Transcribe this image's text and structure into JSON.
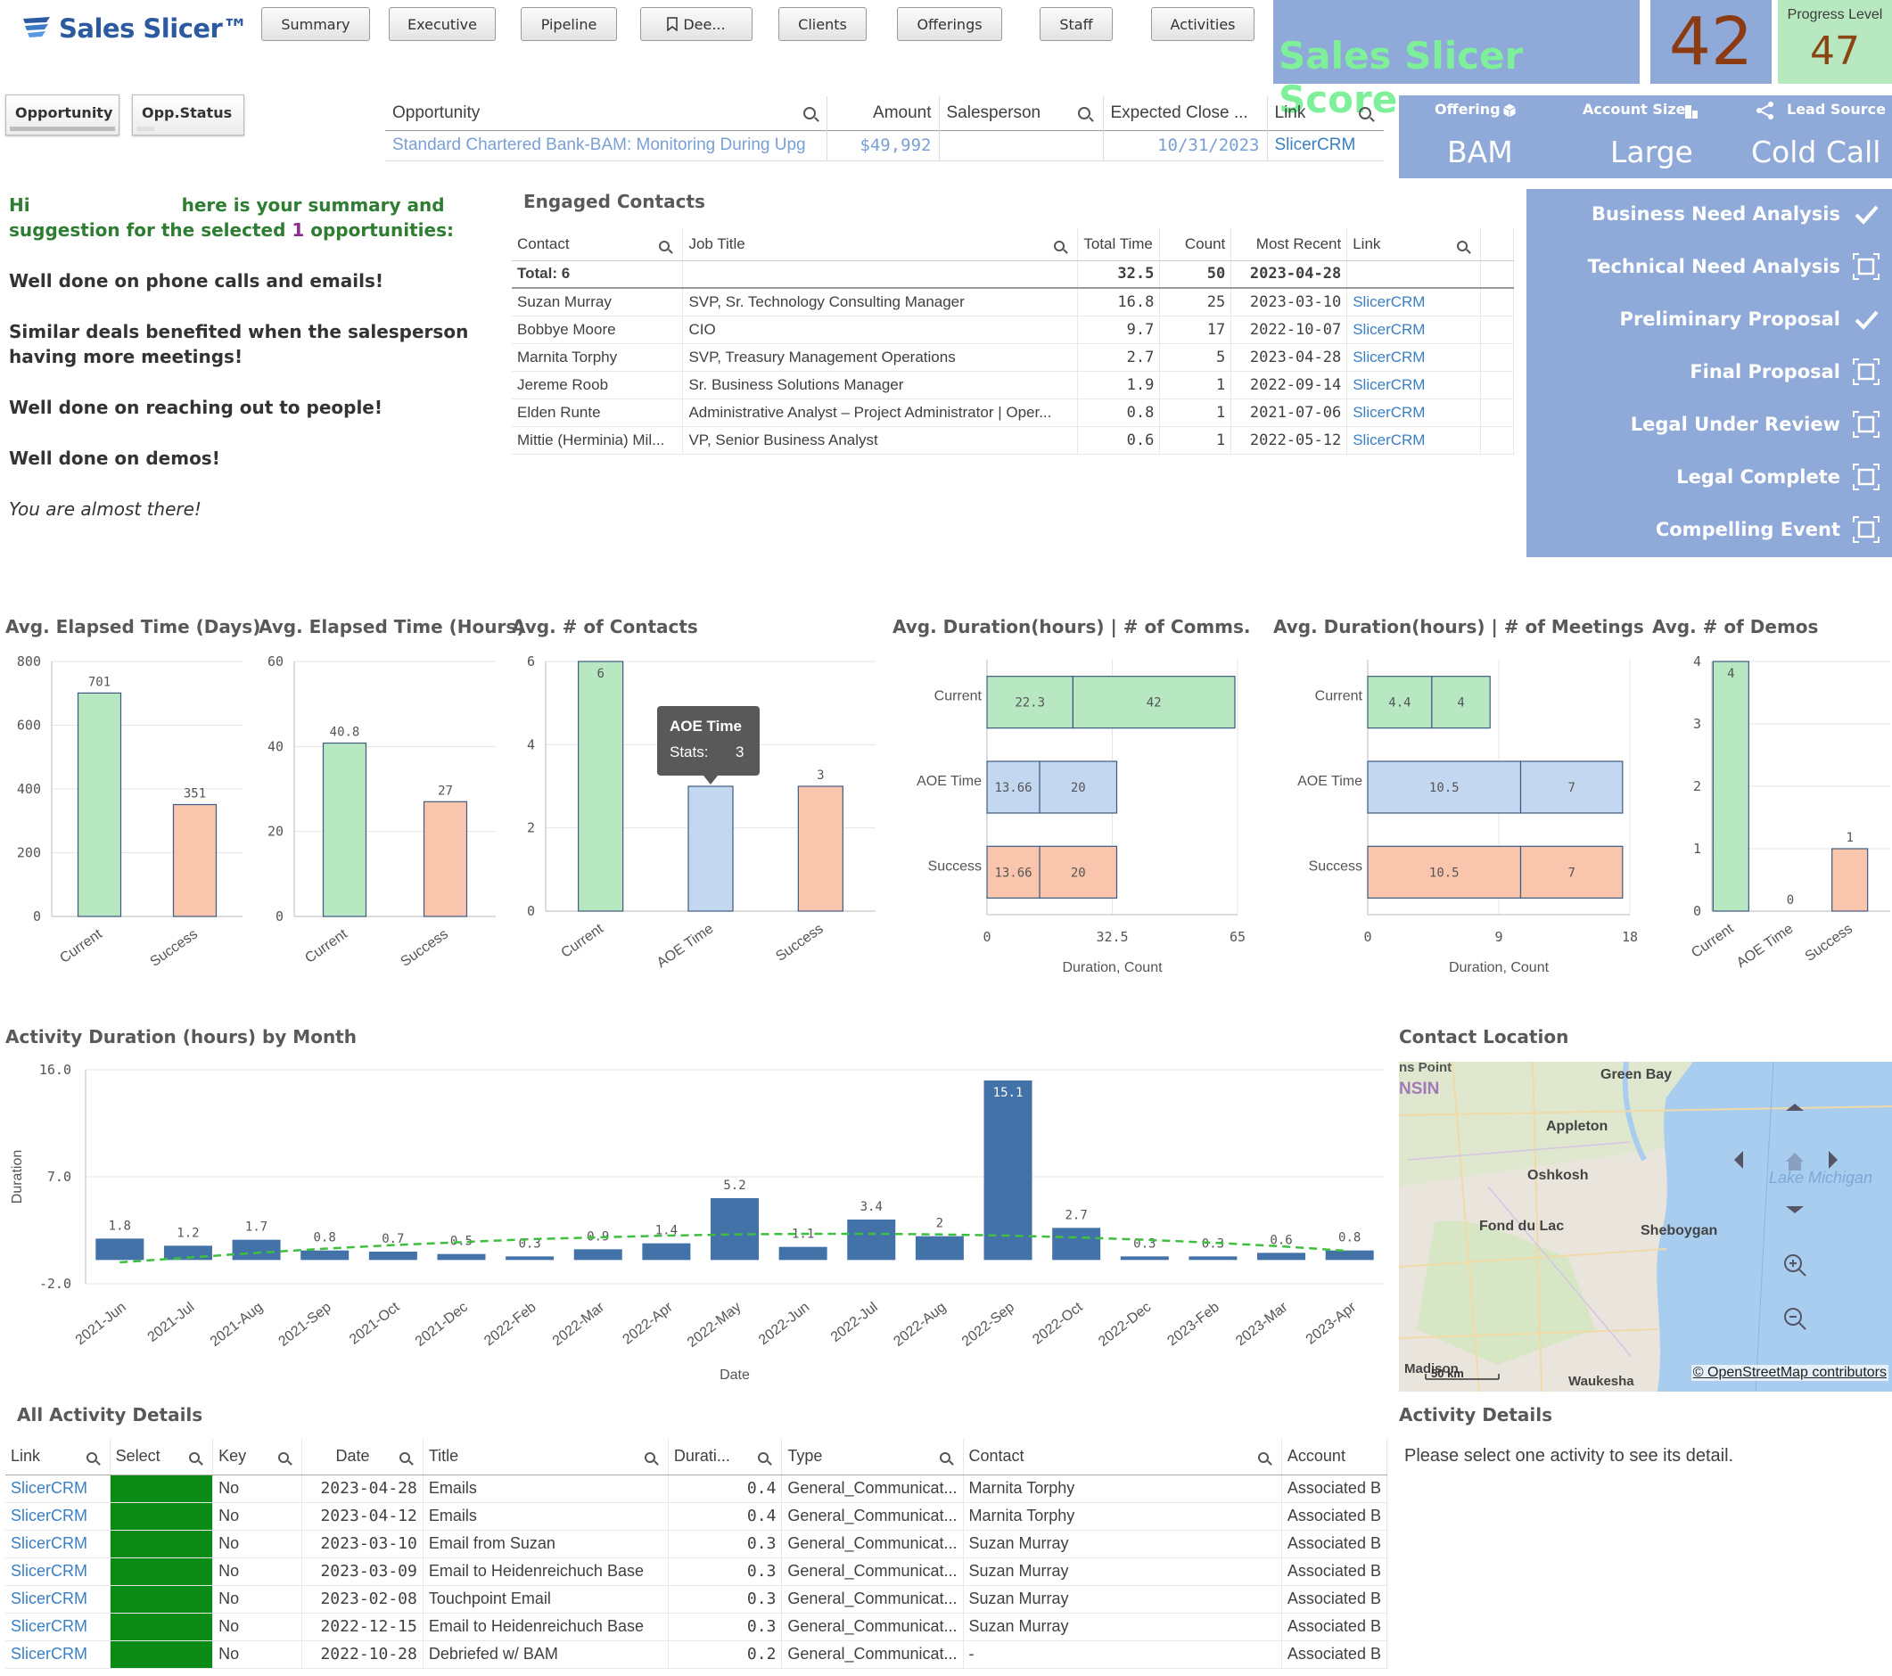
{
  "app": {
    "logo_text": "Sales Slicer™",
    "nav": [
      "Summary",
      "Executive",
      "Pipeline",
      "Dee...",
      "Clients",
      "Offerings",
      "Staff",
      "Activities"
    ],
    "score_label": "Sales Slicer Score",
    "score_value": "42",
    "progress_label": "Progress Level",
    "progress_value": "47"
  },
  "opp_tabs": [
    "Opportunity",
    "Opp.Status"
  ],
  "opp_table": {
    "headers": [
      "Opportunity",
      "Amount",
      "Salesperson",
      "Expected Close ...",
      "Link"
    ],
    "row": [
      "Standard Chartered Bank-BAM: Monitoring During Upg",
      "$49,992",
      "",
      "10/31/2023",
      "SlicerCRM"
    ]
  },
  "offering_panel": {
    "offering_label": "Offering",
    "offering_value": "BAM",
    "account_label": "Account Size",
    "account_value": "Large",
    "lead_label": "Lead Source",
    "lead_value": "Cold Call"
  },
  "stages": [
    {
      "label": "Business Need Analysis",
      "done": true
    },
    {
      "label": "Technical Need Analysis",
      "done": false
    },
    {
      "label": "Preliminary Proposal",
      "done": true
    },
    {
      "label": "Final Proposal",
      "done": false
    },
    {
      "label": "Legal Under Review",
      "done": false
    },
    {
      "label": "Legal Complete",
      "done": false
    },
    {
      "label": "Compelling Event",
      "done": false
    }
  ],
  "summary": {
    "hi": "Hi",
    "line1": "here is your summary and",
    "line2a": "suggestion for the selected",
    "count": "1",
    "line2b": "opportunities:",
    "msg1": "Well done on phone calls and emails!",
    "msg2": "Similar deals benefited when the salesperson having more meetings!",
    "msg3": "Well done on reaching out to people!",
    "msg4": "Well done on demos!",
    "msg5": "You are almost there!"
  },
  "engaged": {
    "title": "Engaged Contacts",
    "headers": [
      "Contact",
      "Job Title",
      "Total Time",
      "Count",
      "Most Recent",
      "Link"
    ],
    "total": [
      "Total: 6",
      "",
      "32.5",
      "50",
      "2023-04-28",
      ""
    ],
    "rows": [
      [
        "Suzan Murray",
        "SVP, Sr. Technology Consulting Manager",
        "16.8",
        "25",
        "2023-03-10",
        "SlicerCRM"
      ],
      [
        "Bobbye Moore",
        "CIO",
        "9.7",
        "17",
        "2022-10-07",
        "SlicerCRM"
      ],
      [
        "Marnita Torphy",
        "SVP, Treasury Management Operations",
        "2.7",
        "5",
        "2023-04-28",
        "SlicerCRM"
      ],
      [
        "Jereme Roob",
        "Sr. Business Solutions Manager",
        "1.9",
        "1",
        "2022-09-14",
        "SlicerCRM"
      ],
      [
        "Elden Runte",
        "Administrative Analyst – Project Administrator | Oper...",
        "0.8",
        "1",
        "2021-07-06",
        "SlicerCRM"
      ],
      [
        "Mittie (Herminia) Mil...",
        "VP, Senior Business Analyst",
        "0.6",
        "1",
        "2022-05-12",
        "SlicerCRM"
      ]
    ]
  },
  "chart_data": [
    {
      "type": "bar",
      "title": "Avg. Elapsed Time (Days)",
      "categories": [
        "Current",
        "Success"
      ],
      "values": [
        701,
        351
      ],
      "ylim": [
        0,
        800
      ],
      "yticks": [
        0,
        200,
        400,
        600,
        800
      ],
      "colors": [
        "#b7e8c2",
        "#f9c6ad"
      ]
    },
    {
      "type": "bar",
      "title": "Avg. Elapsed Time (Hours)",
      "categories": [
        "Current",
        "Success"
      ],
      "values": [
        40.8,
        27
      ],
      "ylim": [
        0,
        60
      ],
      "yticks": [
        0,
        20,
        40,
        60
      ],
      "colors": [
        "#b7e8c2",
        "#f9c6ad"
      ]
    },
    {
      "type": "bar",
      "title": "Avg. # of Contacts",
      "categories": [
        "Current",
        "AOE Time",
        "Success"
      ],
      "values": [
        6,
        3,
        3
      ],
      "ylim": [
        0,
        6
      ],
      "yticks": [
        0,
        2,
        4,
        6
      ],
      "colors": [
        "#b7e8c2",
        "#c3d7f0",
        "#f9c6ad"
      ],
      "tooltip": {
        "title": "AOE Time",
        "label": "Stats:",
        "value": "3"
      }
    },
    {
      "type": "bar",
      "orientation": "horizontal",
      "stacked": true,
      "title": "Avg. Duration(hours) | # of Comms.",
      "categories": [
        "Current",
        "AOE Time",
        "Success"
      ],
      "series": [
        {
          "values": [
            22.3,
            13.66,
            13.66
          ]
        },
        {
          "values": [
            42,
            20,
            20
          ]
        }
      ],
      "xlim": [
        0,
        65
      ],
      "xticks": [
        0,
        32.5,
        65
      ],
      "xlabel": "Duration, Count",
      "colors": [
        "#b7e8c2",
        "#c3d7f0",
        "#f9c6ad"
      ]
    },
    {
      "type": "bar",
      "orientation": "horizontal",
      "stacked": true,
      "title": "Avg. Duration(hours) | # of Meetings",
      "categories": [
        "Current",
        "AOE Time",
        "Success"
      ],
      "series": [
        {
          "values": [
            4.4,
            10.5,
            10.5
          ]
        },
        {
          "values": [
            4,
            7,
            7
          ]
        }
      ],
      "xlim": [
        0,
        18
      ],
      "xticks": [
        0,
        9,
        18
      ],
      "xlabel": "Duration, Count",
      "colors": [
        "#b7e8c2",
        "#c3d7f0",
        "#f9c6ad"
      ]
    },
    {
      "type": "bar",
      "title": "Avg. # of Demos",
      "categories": [
        "Current",
        "AOE Time",
        "Success"
      ],
      "values": [
        4,
        0,
        1
      ],
      "ylim": [
        0,
        4
      ],
      "yticks": [
        0,
        1,
        2,
        3,
        4
      ],
      "colors": [
        "#b7e8c2",
        "#c3d7f0",
        "#f9c6ad"
      ]
    },
    {
      "type": "bar",
      "title": "Activity Duration (hours) by Month",
      "xlabel": "Date",
      "ylabel": "Duration",
      "categories": [
        "2021-Jun",
        "2021-Jul",
        "2021-Aug",
        "2021-Sep",
        "2021-Oct",
        "2021-Dec",
        "2022-Feb",
        "2022-Mar",
        "2022-Apr",
        "2022-May",
        "2022-Jun",
        "2022-Jul",
        "2022-Aug",
        "2022-Sep",
        "2022-Oct",
        "2022-Dec",
        "2023-Feb",
        "2023-Mar",
        "2023-Apr"
      ],
      "values": [
        1.8,
        1.2,
        1.7,
        0.8,
        0.7,
        0.5,
        0.3,
        0.9,
        1.4,
        5.2,
        1.1,
        3.4,
        2.0,
        15.1,
        2.7,
        0.3,
        0.3,
        0.6,
        0.8
      ],
      "trend": [
        -0.2,
        0.2,
        0.6,
        0.95,
        1.25,
        1.5,
        1.75,
        1.9,
        2.05,
        2.15,
        2.2,
        2.2,
        2.15,
        2.05,
        1.9,
        1.7,
        1.45,
        1.15,
        0.75
      ],
      "ylim": [
        -2.0,
        16.0
      ],
      "yticks": [
        -2.0,
        7.0,
        16.0
      ],
      "color": "#4372a8",
      "trend_color": "#3fbf3f"
    }
  ],
  "map": {
    "title": "Contact Location",
    "labels": [
      "ns Point",
      "NSIN",
      "Green Bay",
      "Appleton",
      "Oshkosh",
      "Fond du Lac",
      "Sheboygan",
      "Lake Michigan",
      "Madison",
      "Waukesha"
    ],
    "scale": "50 km",
    "attribution": "© OpenStreetMap contributors"
  },
  "activity": {
    "title": "All Activity Details",
    "headers": [
      "Link",
      "Select",
      "Key",
      "Date",
      "Title",
      "Durati...",
      "Type",
      "Contact",
      "Account"
    ],
    "rows": [
      [
        "SlicerCRM",
        "",
        "No",
        "2023-04-28",
        "Emails",
        "0.4",
        "General_Communicat...",
        "Marnita Torphy",
        "Associated B"
      ],
      [
        "SlicerCRM",
        "",
        "No",
        "2023-04-12",
        "Emails",
        "0.4",
        "General_Communicat...",
        "Marnita Torphy",
        "Associated B"
      ],
      [
        "SlicerCRM",
        "",
        "No",
        "2023-03-10",
        "Email from Suzan",
        "0.3",
        "General_Communicat...",
        "Suzan Murray",
        "Associated B"
      ],
      [
        "SlicerCRM",
        "",
        "No",
        "2023-03-09",
        "Email to Heidenreichuch Base",
        "0.3",
        "General_Communicat...",
        "Suzan Murray",
        "Associated B"
      ],
      [
        "SlicerCRM",
        "",
        "No",
        "2023-02-08",
        "Touchpoint Email",
        "0.3",
        "General_Communicat...",
        "Suzan Murray",
        "Associated B"
      ],
      [
        "SlicerCRM",
        "",
        "No",
        "2022-12-15",
        "Email to Heidenreichuch Base",
        "0.3",
        "General_Communicat...",
        "Suzan Murray",
        "Associated B"
      ],
      [
        "SlicerCRM",
        "",
        "No",
        "2022-10-28",
        "Debriefed w/ BAM",
        "0.2",
        "General_Communicat...",
        "-",
        "Associated B"
      ]
    ]
  },
  "details": {
    "title": "Activity Details",
    "message": "Please select one activity to see its detail."
  }
}
